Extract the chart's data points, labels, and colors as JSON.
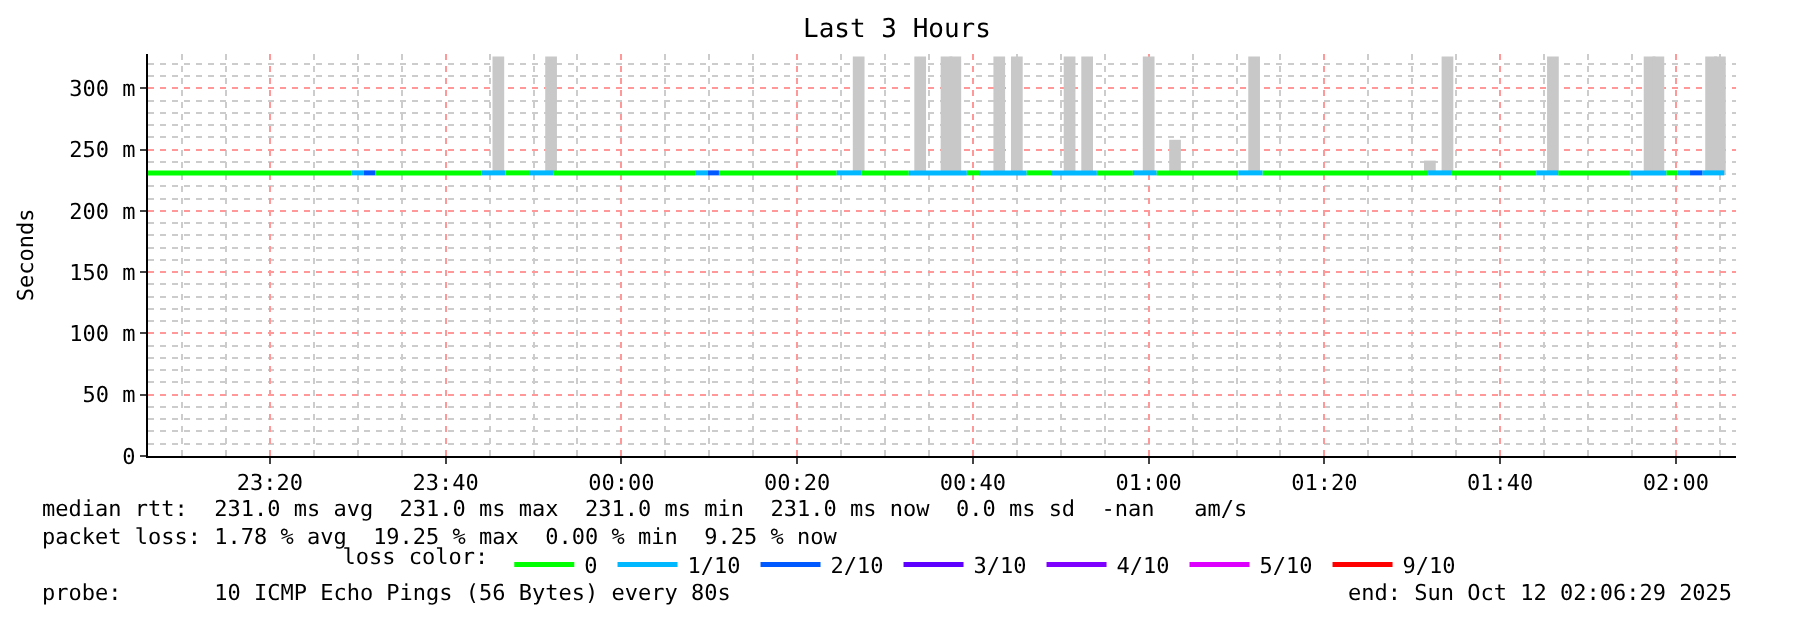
{
  "chart_data": {
    "type": "line",
    "title": "Last 3 Hours",
    "ylabel": "Seconds",
    "xlim": [
      "2025-10-11T23:06:08",
      "2025-10-12T02:06:50"
    ],
    "xticks": [
      {
        "value": "2025-10-11T23:20",
        "label": "23:20"
      },
      {
        "value": "2025-10-11T23:40",
        "label": "23:40"
      },
      {
        "value": "2025-10-12T00:00",
        "label": "00:00"
      },
      {
        "value": "2025-10-12T00:20",
        "label": "00:20"
      },
      {
        "value": "2025-10-12T00:40",
        "label": "00:40"
      },
      {
        "value": "2025-10-12T01:00",
        "label": "01:00"
      },
      {
        "value": "2025-10-12T01:20",
        "label": "01:20"
      },
      {
        "value": "2025-10-12T01:40",
        "label": "01:40"
      },
      {
        "value": "2025-10-12T02:00",
        "label": "02:00"
      }
    ],
    "ylim": [
      0,
      328
    ],
    "yticks": [
      0,
      {
        "value": 50,
        "label": "50 m"
      },
      {
        "value": 100,
        "label": "100 m"
      },
      {
        "value": 150,
        "label": "150 m"
      },
      {
        "value": 200,
        "label": "200 m"
      },
      {
        "value": 250,
        "label": "250 m"
      },
      {
        "value": 300,
        "label": "300 m"
      }
    ],
    "grid": true,
    "legend": "bottom",
    "legend_title": "loss color:",
    "series": [
      {
        "type": "bar",
        "color": "#c8c8c8",
        "x": [
          "2025-10-11T23:46",
          "2025-10-11T23:52",
          "2025-10-12T00:27",
          "2025-10-12T00:34",
          "2025-10-12T00:37",
          "2025-10-12T00:38",
          "2025-10-12T00:43",
          "2025-10-12T00:45",
          "2025-10-12T00:51",
          "2025-10-12T00:53",
          "2025-10-12T01:00",
          "2025-10-12T01:03",
          "2025-10-12T01:12",
          "2025-10-12T01:32",
          "2025-10-12T01:34",
          "2025-10-12T01:46",
          "2025-10-12T01:57",
          "2025-10-12T01:58",
          "2025-10-12T02:04",
          "2025-10-12T02:05"
        ],
        "base": [
          231,
          231,
          231,
          231,
          231,
          231,
          231,
          231,
          231,
          231,
          231,
          231,
          231,
          231,
          231,
          231,
          231,
          231,
          231,
          231
        ],
        "values": [
          95,
          95,
          95,
          95,
          95,
          95,
          95,
          95,
          95,
          95,
          95,
          27,
          95,
          10,
          95,
          95,
          95,
          95,
          95,
          95
        ]
      },
      {
        "name": "0",
        "color": "#00ff00",
        "x": [
          "2025-10-11T23:06:08",
          "2025-10-11T23:29:18",
          "2025-10-11T23:32:00",
          "2025-10-11T23:44:06",
          "2025-10-11T23:46:48",
          "2025-10-11T23:49:30",
          "2025-10-11T23:52:18",
          "2025-10-12T00:08:24",
          "2025-10-12T00:11:06",
          "2025-10-12T00:24:30",
          "2025-10-12T00:27:18",
          "2025-10-12T00:32:42",
          "2025-10-12T00:39:18",
          "2025-10-12T00:40:42",
          "2025-10-12T00:46:06",
          "2025-10-12T00:48:54",
          "2025-10-12T00:54:06",
          "2025-10-12T00:58:12",
          "2025-10-12T01:00:54",
          "2025-10-12T01:10:12",
          "2025-10-12T01:12:57",
          "2025-10-12T01:31:48",
          "2025-10-12T01:34:30",
          "2025-10-12T01:44:06",
          "2025-10-12T01:46:36",
          "2025-10-12T01:54:48",
          "2025-10-12T01:58:54",
          "2025-10-12T02:00:12"
        ],
        "values": [
          231,
          231,
          231,
          231,
          231,
          231,
          231,
          231,
          231,
          231,
          231,
          231,
          231,
          231,
          231,
          231,
          231,
          231,
          231,
          231,
          231,
          231,
          231,
          231,
          231,
          231,
          231,
          231
        ]
      },
      {
        "name": "1/10",
        "color": "#00b8ff",
        "x": [
          "2025-10-11T23:29:18",
          "2025-10-11T23:30:42",
          "2025-10-11T23:44:06",
          "2025-10-11T23:46:48",
          "2025-10-11T23:49:30",
          "2025-10-11T23:52:18",
          "2025-10-12T00:08:24",
          "2025-10-12T00:09:48",
          "2025-10-12T00:24:30",
          "2025-10-12T00:27:18",
          "2025-10-12T00:32:42",
          "2025-10-12T00:39:18",
          "2025-10-12T00:40:42",
          "2025-10-12T00:46:06",
          "2025-10-12T00:48:54",
          "2025-10-12T00:54:06",
          "2025-10-12T00:58:12",
          "2025-10-12T01:00:54",
          "2025-10-12T01:10:12",
          "2025-10-12T01:12:57",
          "2025-10-12T01:31:48",
          "2025-10-12T01:34:30",
          "2025-10-12T01:44:06",
          "2025-10-12T01:46:36",
          "2025-10-12T01:54:48",
          "2025-10-12T01:58:54",
          "2025-10-12T02:00:12",
          "2025-10-12T02:01:36",
          "2025-10-12T02:03:00",
          "2025-10-12T02:05:30"
        ],
        "values": [
          231,
          231,
          231,
          231,
          231,
          231,
          231,
          231,
          231,
          231,
          231,
          231,
          231,
          231,
          231,
          231,
          231,
          231,
          231,
          231,
          231,
          231,
          231,
          231,
          231,
          231,
          231,
          231,
          231,
          231
        ]
      },
      {
        "name": "2/10",
        "color": "#0059ff",
        "x": [
          "2025-10-11T23:30:42",
          "2025-10-11T23:32:00",
          "2025-10-12T00:09:48",
          "2025-10-12T00:11:06",
          "2025-10-12T02:01:36",
          "2025-10-12T02:03:00"
        ],
        "values": [
          231,
          231,
          231,
          231,
          231,
          231
        ]
      },
      {
        "name": "3/10",
        "color": "#5e00ff"
      },
      {
        "name": "4/10",
        "color": "#7e00ff"
      },
      {
        "name": "5/10",
        "color": "#dd00ff"
      },
      {
        "name": "9/10",
        "color": "#ff0000"
      }
    ],
    "annotations": [
      "median rtt:  231.0 ms avg  231.0 ms max  231.0 ms min  231.0 ms now  0.0 ms sd  -nan   am/s",
      "packet loss: 1.78 % avg  19.25 % max  0.00 % min  9.25 % now",
      "probe:       10 ICMP Echo Pings (56 Bytes) every 80s",
      "end: Sun Oct 12 02:06:29 2025"
    ]
  }
}
